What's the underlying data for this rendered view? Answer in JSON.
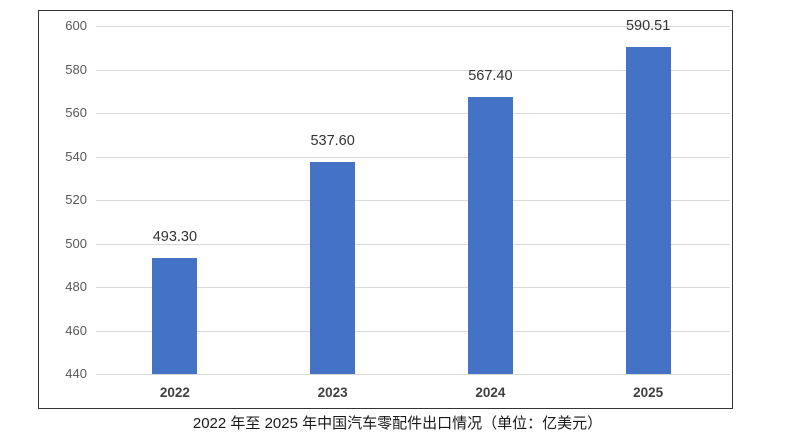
{
  "figure": {
    "caption": "2022 年至 2025 年中国汽车零配件出口情况（单位：亿美元）"
  },
  "chart_data": {
    "type": "bar",
    "categories": [
      "2022",
      "2023",
      "2024",
      "2025"
    ],
    "values": [
      493.3,
      537.6,
      567.4,
      590.51
    ],
    "value_labels": [
      "493.30",
      "537.60",
      "567.40",
      "590.51"
    ],
    "title": "2022 年至 2025 年中国汽车零配件出口情况（单位：亿美元）",
    "xlabel": "",
    "ylabel": "",
    "ylim": [
      440,
      600
    ],
    "yticks": [
      440,
      460,
      480,
      500,
      520,
      540,
      560,
      580,
      600
    ],
    "grid": true,
    "legend": "none",
    "bar_color": "#4472C4",
    "gridline_color": "#d9d9d9",
    "axis_tick_label_color": "#595959",
    "category_label_color": "#404040",
    "value_label_color": "#333333",
    "panel_border_color": "#333333"
  }
}
